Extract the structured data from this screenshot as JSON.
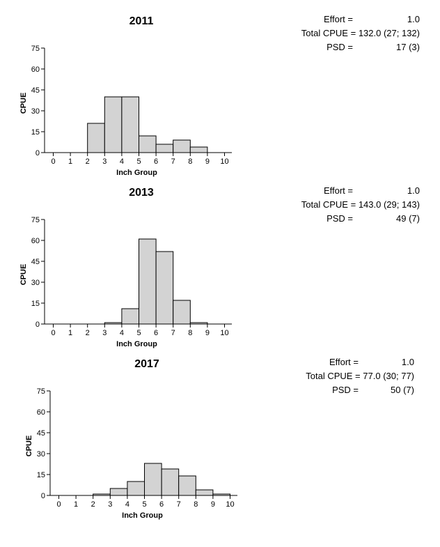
{
  "chart_data": [
    {
      "type": "bar",
      "title": "2011",
      "xlabel": "Inch Group",
      "ylabel": "CPUE",
      "xticks": [
        "0",
        "1",
        "2",
        "3",
        "4",
        "5",
        "6",
        "7",
        "8",
        "9",
        "10"
      ],
      "yticks": [
        "0",
        "15",
        "30",
        "45",
        "60",
        "75"
      ],
      "ylim": [
        0,
        75
      ],
      "xlim": [
        0,
        10
      ],
      "values": [
        0,
        0,
        21,
        40,
        40,
        12,
        6,
        9,
        4,
        0
      ],
      "stats": {
        "effort_label": "Effort =",
        "effort_value": "1.0",
        "cpue_label": "Total CPUE =",
        "cpue_value": "132.0 (27; 132)",
        "psd_label": "PSD =",
        "psd_value": "17 (3)"
      }
    },
    {
      "type": "bar",
      "title": "2013",
      "xlabel": "Inch Group",
      "ylabel": "CPUE",
      "xticks": [
        "0",
        "1",
        "2",
        "3",
        "4",
        "5",
        "6",
        "7",
        "8",
        "9",
        "10"
      ],
      "yticks": [
        "0",
        "15",
        "30",
        "45",
        "60",
        "75"
      ],
      "ylim": [
        0,
        75
      ],
      "xlim": [
        0,
        10
      ],
      "values": [
        0,
        0,
        0,
        1,
        11,
        61,
        52,
        17,
        1,
        0
      ],
      "stats": {
        "effort_label": "Effort =",
        "effort_value": "1.0",
        "cpue_label": "Total CPUE =",
        "cpue_value": "143.0 (29; 143)",
        "psd_label": "PSD =",
        "psd_value": "49 (7)"
      }
    },
    {
      "type": "bar",
      "title": "2017",
      "xlabel": "Inch Group",
      "ylabel": "CPUE",
      "xticks": [
        "0",
        "1",
        "2",
        "3",
        "4",
        "5",
        "6",
        "7",
        "8",
        "9",
        "10"
      ],
      "yticks": [
        "0",
        "15",
        "30",
        "45",
        "60",
        "75"
      ],
      "ylim": [
        0,
        75
      ],
      "xlim": [
        0,
        10
      ],
      "values": [
        0,
        0,
        1,
        5,
        10,
        23,
        19,
        14,
        4,
        1
      ],
      "stats": {
        "effort_label": "Effort =",
        "effort_value": "1.0",
        "cpue_label": "Total CPUE =",
        "cpue_value": "77.0 (30; 77)",
        "psd_label": "PSD =",
        "psd_value": "50 (7)"
      }
    }
  ],
  "style": {
    "bar_fill": "#d3d3d3",
    "bar_stroke": "#000000",
    "axis_color": "#000000"
  }
}
